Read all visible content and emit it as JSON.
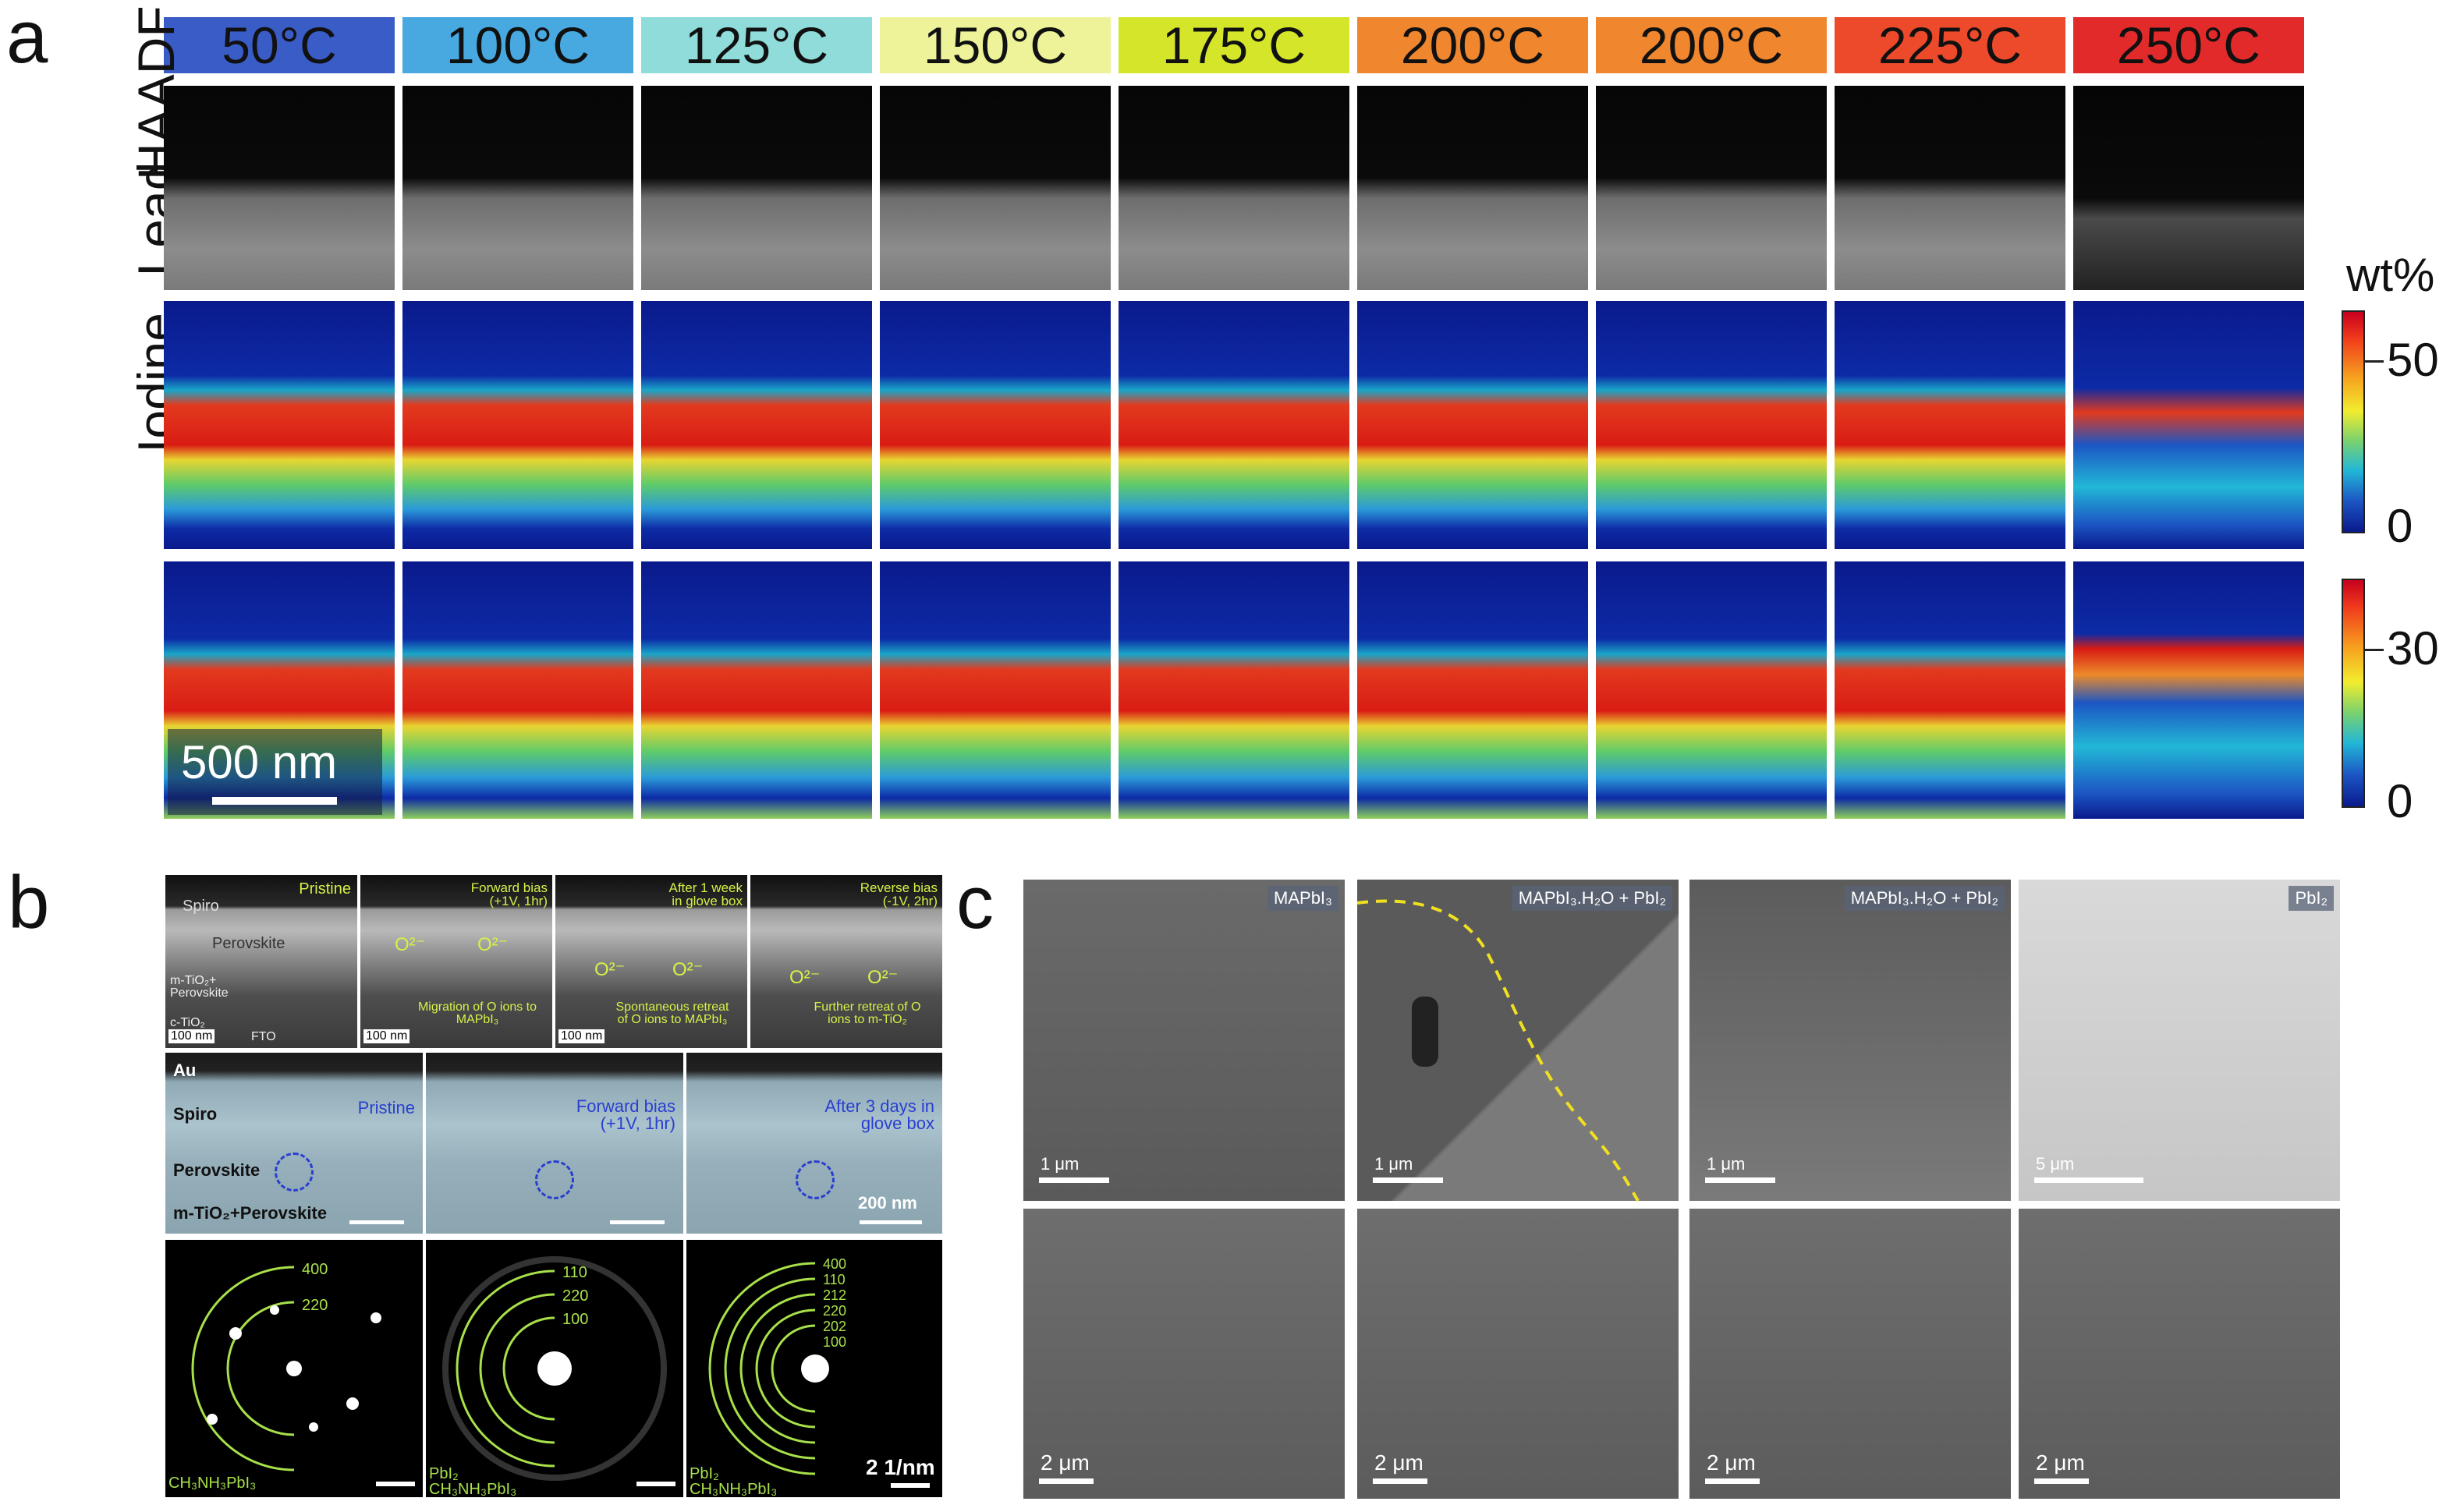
{
  "panel_a": {
    "letter": "a",
    "temperatures": [
      {
        "label": "50°C",
        "color": "#3a5cc6"
      },
      {
        "label": "100°C",
        "color": "#47a9e0"
      },
      {
        "label": "125°C",
        "color": "#8fdcda"
      },
      {
        "label": "150°C",
        "color": "#eef39a"
      },
      {
        "label": "175°C",
        "color": "#d5e62a"
      },
      {
        "label": "200°C",
        "color": "#f0862e"
      },
      {
        "label": "200°C",
        "color": "#f0862e"
      },
      {
        "label": "225°C",
        "color": "#ec4a2a"
      },
      {
        "label": "250°C",
        "color": "#e22a2a"
      }
    ],
    "rows": [
      "HAADF",
      "Lead",
      "Iodine"
    ],
    "scalebar": "500 nm",
    "colorbar_unit": "wt%",
    "lead_ticks": [
      "50",
      "0"
    ],
    "iodine_ticks": [
      "30",
      "0"
    ]
  },
  "panel_b": {
    "letter": "b",
    "top": [
      {
        "title": "Pristine",
        "layers": [
          "Spiro",
          "Perovskite",
          "m-TiO₂+ Perovskite",
          "c-TiO₂",
          "FTO"
        ],
        "scale": "100 nm"
      },
      {
        "title": "Forward bias (+1V, 1hr)",
        "ion": "O²⁻",
        "caption": "Migration of O ions to MAPbI₃",
        "scale": "100 nm"
      },
      {
        "title": "After 1 week in glove box",
        "ion": "O²⁻",
        "caption": "Spontaneous retreat of O ions to MAPbI₃",
        "scale": "100 nm"
      },
      {
        "title": "Reverse bias (-1V, 2hr)",
        "ion": "O²⁻",
        "caption": "Further retreat of O ions to m-TiO₂",
        "scale": ""
      }
    ],
    "middle": [
      {
        "title": "Pristine",
        "layers": [
          "Au",
          "Spiro",
          "Perovskite",
          "m-TiO₂+Perovskite"
        ]
      },
      {
        "title": "Forward bias (+1V, 1hr)"
      },
      {
        "title": "After 3 days in glove box",
        "scale": "200 nm"
      }
    ],
    "diffraction": [
      {
        "rings": [
          "400",
          "220"
        ],
        "phase": "CH₃NH₃PbI₃"
      },
      {
        "rings": [
          "110",
          "220",
          "100"
        ],
        "phase": "PbI₂ CH₃NH₃PbI₃"
      },
      {
        "rings": [
          "400",
          "110",
          "212",
          "220",
          "202",
          "100"
        ],
        "phase": "PbI₂ CH₃NH₃PbI₃",
        "scale": "2 1/nm"
      }
    ]
  },
  "panel_c": {
    "letter": "c",
    "top": [
      {
        "tag": "MAPbI₃",
        "scale": "1 μm"
      },
      {
        "tag": "MAPbI₃.H₂O + PbI₂",
        "scale": "1 μm"
      },
      {
        "tag": "MAPbI₃.H₂O + PbI₂",
        "scale": "1 μm"
      },
      {
        "tag": "PbI₂",
        "scale": "5 μm"
      }
    ],
    "bottom": [
      {
        "scale": "2 μm"
      },
      {
        "scale": "2 μm"
      },
      {
        "scale": "2 μm"
      },
      {
        "scale": "2 μm"
      }
    ]
  }
}
